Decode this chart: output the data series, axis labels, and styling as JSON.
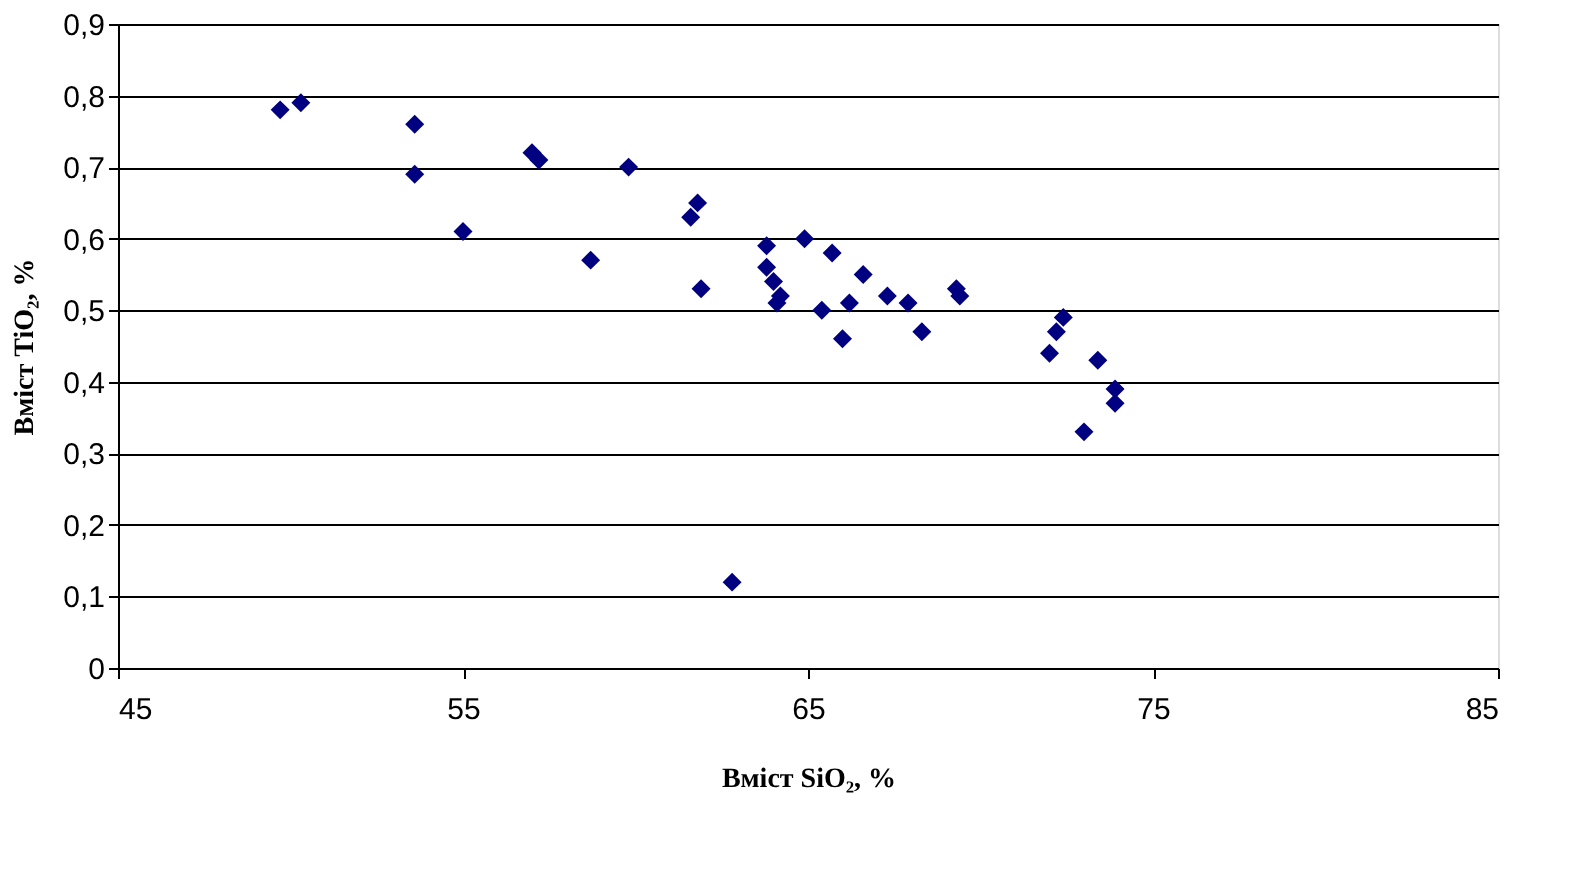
{
  "chart_data": {
    "type": "scatter",
    "xlabel": "Вміст SiO₂, %",
    "ylabel": "Вміст TiO₂, %",
    "x": [
      49.7,
      50.3,
      53.6,
      53.6,
      55,
      57,
      57.2,
      58.7,
      59.8,
      61.6,
      61.8,
      61.9,
      62.8,
      63.8,
      63.8,
      64,
      64.1,
      64.2,
      64.9,
      65.4,
      65.7,
      66,
      66.2,
      66.6,
      67.3,
      67.9,
      68.3,
      69.3,
      69.4,
      72,
      72.2,
      72.4,
      73,
      73.4,
      73.9,
      73.9
    ],
    "series": [
      {
        "color": "#000080",
        "values": [
          0.78,
          0.79,
          0.76,
          0.69,
          0.61,
          0.72,
          0.71,
          0.57,
          0.7,
          0.63,
          0.65,
          0.53,
          0.12,
          0.59,
          0.56,
          0.54,
          0.51,
          0.52,
          0.6,
          0.5,
          0.58,
          0.46,
          0.51,
          0.55,
          0.52,
          0.51,
          0.47,
          0.53,
          0.52,
          0.44,
          0.47,
          0.49,
          0.33,
          0.43,
          0.39,
          0.37
        ]
      }
    ],
    "xlim": [
      45,
      85
    ],
    "xticks": [
      45,
      55,
      65,
      75,
      85
    ],
    "ylim": [
      0,
      0.9
    ],
    "yticks": [
      0,
      {
        "value": 0.1,
        "label": "0,1"
      },
      {
        "value": 0.2,
        "label": "0,2"
      },
      {
        "value": 0.3,
        "label": "0,3"
      },
      {
        "value": 0.4,
        "label": "0,4"
      },
      {
        "value": 0.5,
        "label": "0,5"
      },
      {
        "value": 0.6,
        "label": "0,6"
      },
      {
        "value": 0.7,
        "label": "0,7"
      },
      {
        "value": 0.8,
        "label": "0,8"
      },
      {
        "value": 0.9,
        "label": "0,9"
      }
    ],
    "grid": "y",
    "marker": "diamond"
  }
}
